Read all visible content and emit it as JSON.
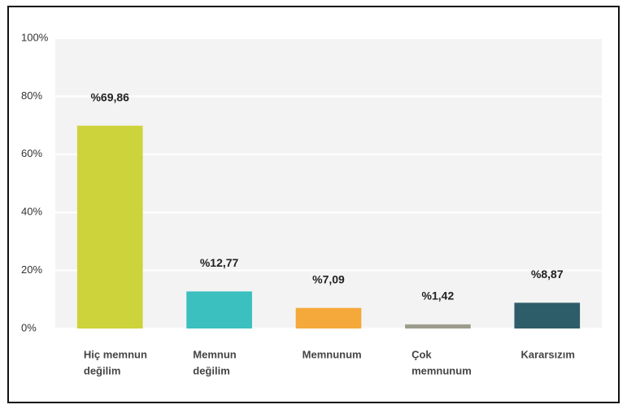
{
  "chart_data": {
    "type": "bar",
    "categories": [
      [
        "Hiç memnun",
        "değilim"
      ],
      [
        "Memnun",
        "değilim"
      ],
      [
        "Memnunum"
      ],
      [
        "Çok",
        "memnunum"
      ],
      [
        "Kararsızım"
      ]
    ],
    "values": [
      69.86,
      12.77,
      7.09,
      1.42,
      8.87
    ],
    "value_labels": [
      "%69,86",
      "%12,77",
      "%7,09",
      "%1,42",
      "%8,87"
    ],
    "colors": [
      "#cdd33a",
      "#3bbfbf",
      "#f5a93a",
      "#9c9c8c",
      "#2e5d6a"
    ],
    "ylim": [
      0,
      100
    ],
    "yticks": [
      {
        "value": 0,
        "label": "0%"
      },
      {
        "value": 20,
        "label": "20%"
      },
      {
        "value": 40,
        "label": "40%"
      },
      {
        "value": 60,
        "label": "60%"
      },
      {
        "value": 80,
        "label": "80%"
      },
      {
        "value": 100,
        "label": "100%"
      }
    ],
    "grid": true
  }
}
